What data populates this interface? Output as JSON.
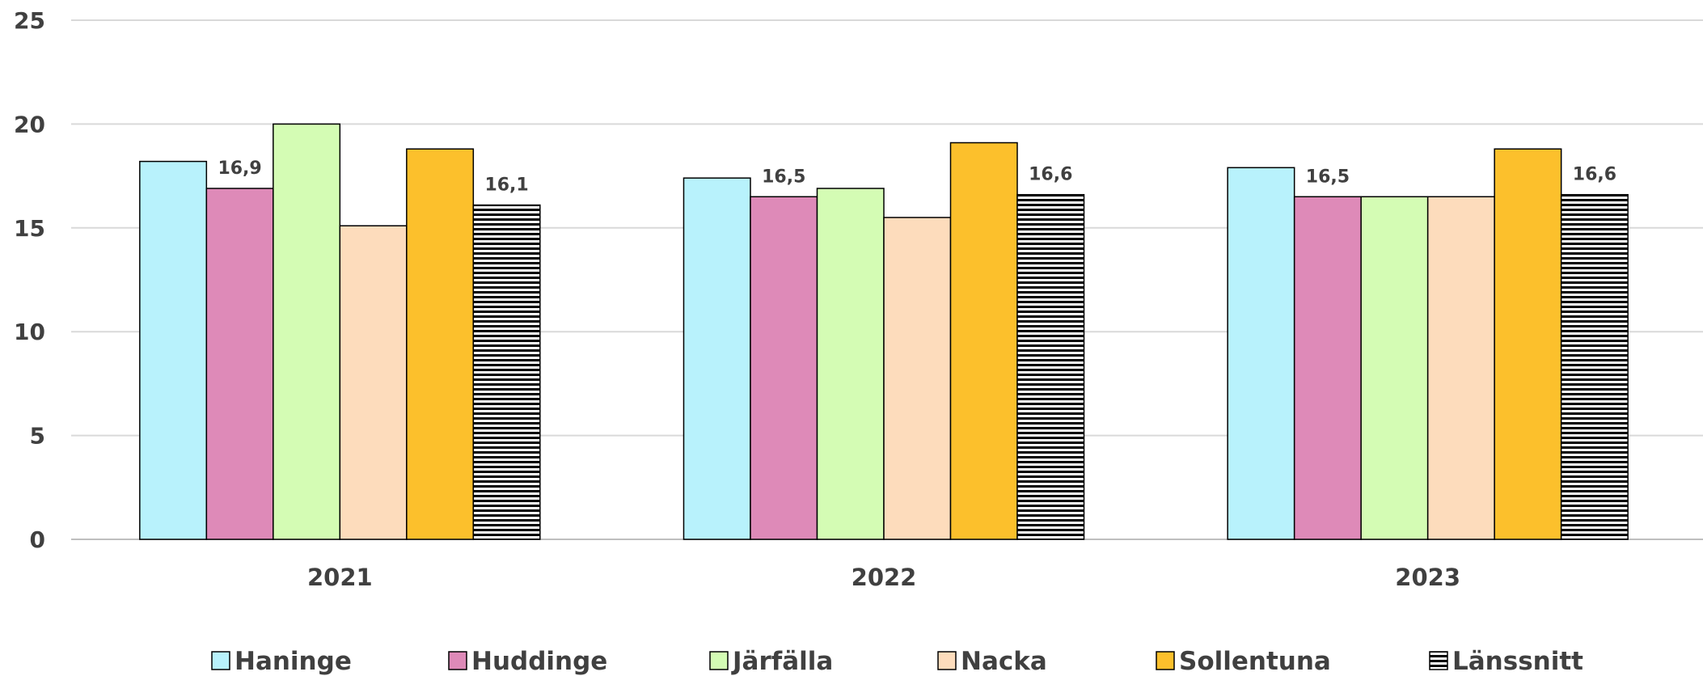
{
  "chart_data": {
    "type": "bar",
    "title": "",
    "xlabel": "",
    "ylabel": "",
    "ylim": [
      0,
      25
    ],
    "yticks": [
      0,
      5,
      10,
      15,
      20,
      25
    ],
    "grid": true,
    "legend_position": "bottom",
    "categories": [
      "2021",
      "2022",
      "2023"
    ],
    "series": [
      {
        "name": "Haninge",
        "values": [
          18.2,
          17.4,
          17.9
        ],
        "color": "#B8F2FC",
        "labels": [
          "",
          "",
          ""
        ]
      },
      {
        "name": "Huddinge",
        "values": [
          16.9,
          16.5,
          16.5
        ],
        "color": "#DE8AB8",
        "labels": [
          "16,9",
          "16,5",
          "16,5"
        ]
      },
      {
        "name": "Järfälla",
        "values": [
          20.0,
          16.9,
          16.5
        ],
        "color": "#D4FCB4",
        "labels": [
          "",
          "",
          ""
        ]
      },
      {
        "name": "Nacka",
        "values": [
          15.1,
          15.5,
          16.5
        ],
        "color": "#FDDCBC",
        "labels": [
          "",
          "",
          ""
        ]
      },
      {
        "name": "Sollentuna",
        "values": [
          18.8,
          19.1,
          18.8
        ],
        "color": "#FCC02C",
        "labels": [
          "",
          "",
          ""
        ]
      },
      {
        "name": "Länssnitt",
        "values": [
          16.1,
          16.6,
          16.6
        ],
        "color": "#000000",
        "pattern": "horizontal-stripes",
        "labels": [
          "16,1",
          "16,6",
          "16,6"
        ]
      }
    ]
  }
}
